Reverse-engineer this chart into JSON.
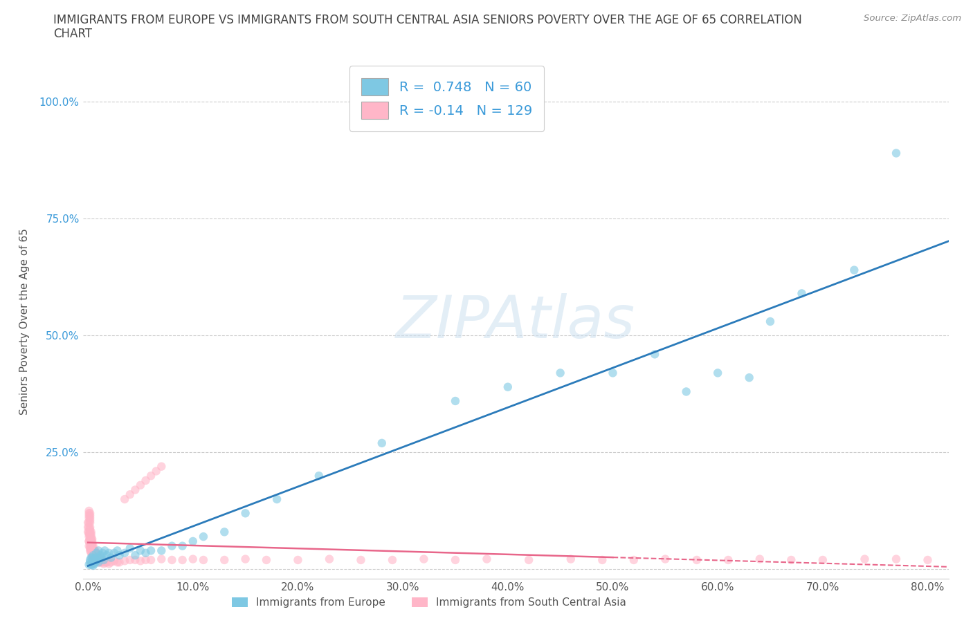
{
  "title_line1": "IMMIGRANTS FROM EUROPE VS IMMIGRANTS FROM SOUTH CENTRAL ASIA SENIORS POVERTY OVER THE AGE OF 65 CORRELATION",
  "title_line2": "CHART",
  "source": "Source: ZipAtlas.com",
  "ylabel": "Seniors Poverty Over the Age of 65",
  "xlim": [
    -0.005,
    0.82
  ],
  "ylim": [
    -0.02,
    1.08
  ],
  "xticks": [
    0.0,
    0.1,
    0.2,
    0.3,
    0.4,
    0.5,
    0.6,
    0.7,
    0.8
  ],
  "xticklabels": [
    "0.0%",
    "10.0%",
    "20.0%",
    "30.0%",
    "40.0%",
    "50.0%",
    "60.0%",
    "70.0%",
    "80.0%"
  ],
  "yticks": [
    0.0,
    0.25,
    0.5,
    0.75,
    1.0
  ],
  "yticklabels": [
    "",
    "25.0%",
    "50.0%",
    "75.0%",
    "100.0%"
  ],
  "color_europe": "#7ec8e3",
  "color_asia": "#ffb6c8",
  "R_europe": 0.748,
  "N_europe": 60,
  "R_asia": -0.14,
  "N_asia": 129,
  "legend_label_europe": "Immigrants from Europe",
  "legend_label_asia": "Immigrants from South Central Asia",
  "watermark": "ZIPAtlas",
  "background_color": "#ffffff",
  "grid_color": "#cccccc",
  "reg_color_europe": "#2b7bba",
  "reg_color_asia": "#e8668a",
  "europe_x": [
    0.001,
    0.002,
    0.002,
    0.003,
    0.003,
    0.004,
    0.004,
    0.004,
    0.005,
    0.005,
    0.005,
    0.006,
    0.006,
    0.007,
    0.007,
    0.008,
    0.008,
    0.009,
    0.01,
    0.01,
    0.011,
    0.012,
    0.013,
    0.014,
    0.015,
    0.016,
    0.018,
    0.02,
    0.022,
    0.025,
    0.028,
    0.03,
    0.035,
    0.04,
    0.045,
    0.05,
    0.055,
    0.06,
    0.07,
    0.08,
    0.09,
    0.1,
    0.11,
    0.13,
    0.15,
    0.18,
    0.22,
    0.28,
    0.35,
    0.4,
    0.45,
    0.5,
    0.54,
    0.57,
    0.6,
    0.63,
    0.65,
    0.68,
    0.73,
    0.77
  ],
  "europe_y": [
    0.01,
    0.015,
    0.02,
    0.01,
    0.025,
    0.01,
    0.015,
    0.025,
    0.008,
    0.018,
    0.03,
    0.012,
    0.022,
    0.015,
    0.025,
    0.018,
    0.035,
    0.02,
    0.015,
    0.04,
    0.025,
    0.03,
    0.025,
    0.035,
    0.02,
    0.04,
    0.03,
    0.035,
    0.025,
    0.035,
    0.04,
    0.03,
    0.035,
    0.045,
    0.03,
    0.04,
    0.035,
    0.04,
    0.04,
    0.05,
    0.05,
    0.06,
    0.07,
    0.08,
    0.12,
    0.15,
    0.2,
    0.27,
    0.36,
    0.39,
    0.42,
    0.42,
    0.46,
    0.38,
    0.42,
    0.41,
    0.53,
    0.59,
    0.64,
    0.89
  ],
  "asia_x": [
    0.0,
    0.0,
    0.0,
    0.001,
    0.001,
    0.001,
    0.001,
    0.001,
    0.001,
    0.001,
    0.001,
    0.001,
    0.001,
    0.001,
    0.001,
    0.002,
    0.002,
    0.002,
    0.002,
    0.002,
    0.002,
    0.002,
    0.002,
    0.002,
    0.002,
    0.002,
    0.002,
    0.002,
    0.002,
    0.002,
    0.003,
    0.003,
    0.003,
    0.003,
    0.003,
    0.003,
    0.003,
    0.003,
    0.003,
    0.003,
    0.004,
    0.004,
    0.004,
    0.004,
    0.004,
    0.004,
    0.004,
    0.004,
    0.005,
    0.005,
    0.005,
    0.005,
    0.005,
    0.005,
    0.006,
    0.006,
    0.006,
    0.006,
    0.007,
    0.007,
    0.007,
    0.007,
    0.008,
    0.008,
    0.008,
    0.008,
    0.009,
    0.009,
    0.01,
    0.01,
    0.01,
    0.01,
    0.011,
    0.012,
    0.012,
    0.013,
    0.014,
    0.015,
    0.015,
    0.016,
    0.017,
    0.018,
    0.02,
    0.022,
    0.025,
    0.028,
    0.03,
    0.035,
    0.04,
    0.045,
    0.05,
    0.055,
    0.06,
    0.07,
    0.08,
    0.09,
    0.1,
    0.11,
    0.13,
    0.15,
    0.17,
    0.2,
    0.23,
    0.26,
    0.29,
    0.32,
    0.35,
    0.38,
    0.42,
    0.46,
    0.49,
    0.52,
    0.55,
    0.58,
    0.61,
    0.64,
    0.67,
    0.7,
    0.74,
    0.77,
    0.8,
    0.035,
    0.04,
    0.045,
    0.05,
    0.055,
    0.06,
    0.065,
    0.07
  ],
  "asia_y": [
    0.08,
    0.09,
    0.1,
    0.06,
    0.07,
    0.075,
    0.08,
    0.09,
    0.1,
    0.11,
    0.115,
    0.12,
    0.125,
    0.05,
    0.06,
    0.04,
    0.05,
    0.06,
    0.065,
    0.07,
    0.075,
    0.08,
    0.085,
    0.09,
    0.1,
    0.105,
    0.11,
    0.115,
    0.12,
    0.045,
    0.035,
    0.04,
    0.045,
    0.05,
    0.055,
    0.06,
    0.065,
    0.07,
    0.075,
    0.08,
    0.03,
    0.035,
    0.04,
    0.045,
    0.05,
    0.055,
    0.06,
    0.065,
    0.025,
    0.03,
    0.035,
    0.04,
    0.045,
    0.05,
    0.025,
    0.03,
    0.035,
    0.04,
    0.025,
    0.03,
    0.035,
    0.04,
    0.02,
    0.025,
    0.03,
    0.035,
    0.02,
    0.025,
    0.015,
    0.02,
    0.025,
    0.03,
    0.015,
    0.015,
    0.02,
    0.015,
    0.018,
    0.012,
    0.015,
    0.018,
    0.015,
    0.015,
    0.012,
    0.015,
    0.018,
    0.015,
    0.015,
    0.018,
    0.02,
    0.02,
    0.018,
    0.02,
    0.02,
    0.022,
    0.02,
    0.02,
    0.022,
    0.02,
    0.02,
    0.022,
    0.02,
    0.02,
    0.022,
    0.02,
    0.02,
    0.022,
    0.02,
    0.022,
    0.02,
    0.022,
    0.02,
    0.02,
    0.022,
    0.02,
    0.02,
    0.022,
    0.02,
    0.02,
    0.022,
    0.022,
    0.02,
    0.15,
    0.16,
    0.17,
    0.18,
    0.19,
    0.2,
    0.21,
    0.22
  ]
}
